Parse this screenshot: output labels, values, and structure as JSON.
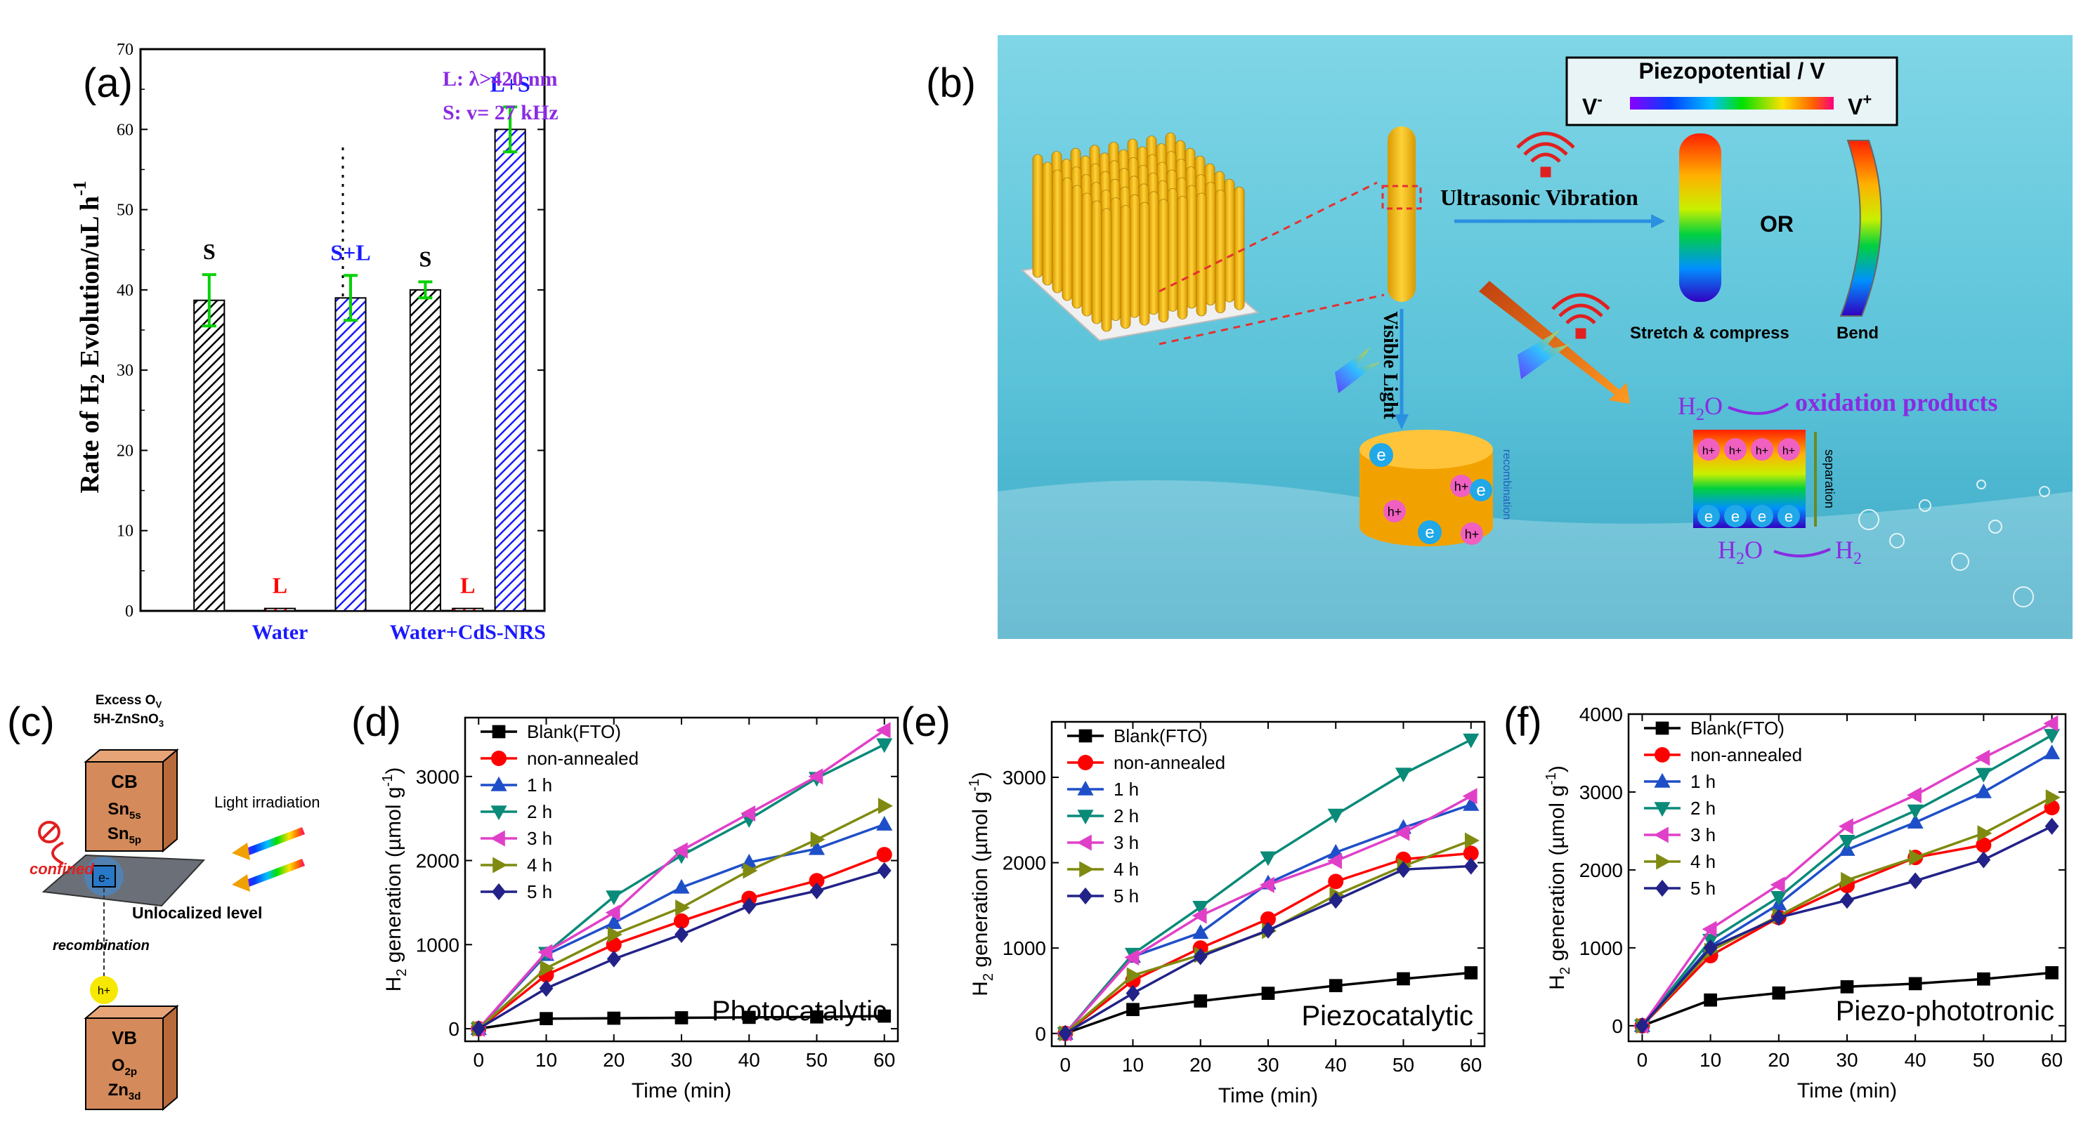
{
  "panels": {
    "a": {
      "letter": "(a)"
    },
    "b": {
      "letter": "(b)"
    },
    "c": {
      "letter": "(c)"
    },
    "d": {
      "letter": "(d)"
    },
    "e": {
      "letter": "(e)"
    },
    "f": {
      "letter": "(f)"
    }
  },
  "chart_data": [
    {
      "id": "a",
      "type": "bar",
      "ylabel": "Rate of H2 Evolution/uL h-1",
      "ylim": [
        0,
        70
      ],
      "yticks": [
        0,
        10,
        20,
        30,
        40,
        50,
        60,
        70
      ],
      "annotations": [
        "L:  λ>420 nm",
        "S:  v= 27 kHz"
      ],
      "groups": [
        {
          "name": "Water",
          "bars": [
            {
              "label": "S",
              "value": 38.7,
              "error": 3.2,
              "style": "black-hatch"
            },
            {
              "label": "L",
              "value": 0.3,
              "error": 0,
              "style": "red-hatch"
            },
            {
              "label": "S+L",
              "value": 39.0,
              "error": 2.8,
              "style": "blue-hatch"
            }
          ]
        },
        {
          "name": "Water+CdS-NRS",
          "bars": [
            {
              "label": "S",
              "value": 40.0,
              "error": 1.0,
              "style": "black-hatch"
            },
            {
              "label": "L",
              "value": 0.3,
              "error": 0,
              "style": "red-hatch"
            },
            {
              "label": "L+S",
              "value": 60.0,
              "error": 2.8,
              "style": "blue-hatch"
            }
          ]
        }
      ]
    },
    {
      "id": "d",
      "type": "line",
      "xlabel": "Time (min)",
      "ylabel": "H2 generation (µmol g-1)",
      "annotation": "Photocatalytic",
      "xlim": [
        -2,
        62
      ],
      "ylim": [
        -150,
        3700
      ],
      "xticks": [
        0,
        10,
        20,
        30,
        40,
        50,
        60
      ],
      "yticks": [
        0,
        1000,
        2000,
        3000
      ],
      "x": [
        0,
        10,
        20,
        30,
        40,
        50,
        60
      ],
      "series": [
        {
          "name": "Blank(FTO)",
          "color": "#000000",
          "marker": "square",
          "values": [
            0,
            120,
            125,
            130,
            135,
            140,
            150
          ]
        },
        {
          "name": "non-annealed",
          "color": "#ff0000",
          "marker": "circle",
          "values": [
            0,
            640,
            1000,
            1280,
            1550,
            1760,
            2070
          ]
        },
        {
          "name": "1 h",
          "color": "#1f4fc8",
          "marker": "triangle-up",
          "values": [
            0,
            880,
            1260,
            1680,
            1980,
            2140,
            2430
          ]
        },
        {
          "name": "2 h",
          "color": "#0a8a78",
          "marker": "triangle-down",
          "values": [
            0,
            900,
            1570,
            2060,
            2490,
            2980,
            3380
          ]
        },
        {
          "name": "3 h",
          "color": "#e040c8",
          "marker": "triangle-left",
          "values": [
            0,
            910,
            1380,
            2120,
            2560,
            3000,
            3550
          ]
        },
        {
          "name": "4 h",
          "color": "#7f8a10",
          "marker": "triangle-right",
          "values": [
            0,
            720,
            1120,
            1440,
            1880,
            2250,
            2650
          ]
        },
        {
          "name": "5 h",
          "color": "#222288",
          "marker": "diamond",
          "values": [
            0,
            480,
            830,
            1120,
            1460,
            1640,
            1880
          ]
        }
      ]
    },
    {
      "id": "e",
      "type": "line",
      "xlabel": "Time (min)",
      "ylabel": "H2 generation (µmol g-1)",
      "annotation": "Piezocatalytic",
      "xlim": [
        -2,
        62
      ],
      "ylim": [
        -150,
        3650
      ],
      "xticks": [
        0,
        10,
        20,
        30,
        40,
        50,
        60
      ],
      "yticks": [
        0,
        1000,
        2000,
        3000
      ],
      "x": [
        0,
        10,
        20,
        30,
        40,
        50,
        60
      ],
      "series": [
        {
          "name": "Blank(FTO)",
          "color": "#000000",
          "marker": "square",
          "values": [
            0,
            280,
            380,
            470,
            560,
            640,
            710
          ]
        },
        {
          "name": "non-annealed",
          "color": "#ff0000",
          "marker": "circle",
          "values": [
            0,
            620,
            1000,
            1340,
            1780,
            2040,
            2110
          ]
        },
        {
          "name": "1 h",
          "color": "#1f4fc8",
          "marker": "triangle-up",
          "values": [
            0,
            900,
            1180,
            1760,
            2120,
            2410,
            2680
          ]
        },
        {
          "name": "2 h",
          "color": "#0a8a78",
          "marker": "triangle-down",
          "values": [
            0,
            930,
            1480,
            2060,
            2560,
            3040,
            3440
          ]
        },
        {
          "name": "3 h",
          "color": "#e040c8",
          "marker": "triangle-left",
          "values": [
            0,
            890,
            1380,
            1740,
            2020,
            2350,
            2780
          ]
        },
        {
          "name": "4 h",
          "color": "#7f8a10",
          "marker": "triangle-right",
          "values": [
            0,
            680,
            920,
            1200,
            1620,
            1960,
            2260
          ]
        },
        {
          "name": "5 h",
          "color": "#222288",
          "marker": "diamond",
          "values": [
            0,
            470,
            900,
            1210,
            1560,
            1920,
            1960
          ]
        }
      ]
    },
    {
      "id": "f",
      "type": "line",
      "xlabel": "Time (min)",
      "ylabel": "H2 generation (µmol g-1)",
      "annotation": "Piezo-phototronic",
      "xlim": [
        -2,
        62
      ],
      "ylim": [
        -200,
        4000
      ],
      "xticks": [
        0,
        10,
        20,
        30,
        40,
        50,
        60
      ],
      "yticks": [
        0,
        1000,
        2000,
        3000,
        4000
      ],
      "x": [
        0,
        10,
        20,
        30,
        40,
        50,
        60
      ],
      "series": [
        {
          "name": "Blank(FTO)",
          "color": "#000000",
          "marker": "square",
          "values": [
            0,
            330,
            420,
            500,
            540,
            600,
            680
          ]
        },
        {
          "name": "non-annealed",
          "color": "#ff0000",
          "marker": "circle",
          "values": [
            0,
            900,
            1390,
            1800,
            2160,
            2320,
            2800
          ]
        },
        {
          "name": "1 h",
          "color": "#1f4fc8",
          "marker": "triangle-up",
          "values": [
            0,
            1020,
            1560,
            2260,
            2610,
            3000,
            3500
          ]
        },
        {
          "name": "2 h",
          "color": "#0a8a78",
          "marker": "triangle-down",
          "values": [
            0,
            1100,
            1650,
            2370,
            2760,
            3230,
            3730
          ]
        },
        {
          "name": "3 h",
          "color": "#e040c8",
          "marker": "triangle-left",
          "values": [
            0,
            1240,
            1810,
            2560,
            2960,
            3440,
            3880
          ]
        },
        {
          "name": "4 h",
          "color": "#7f8a10",
          "marker": "triangle-right",
          "values": [
            0,
            960,
            1410,
            1870,
            2160,
            2470,
            2930
          ]
        },
        {
          "name": "5 h",
          "color": "#222288",
          "marker": "diamond",
          "values": [
            0,
            1000,
            1390,
            1610,
            1860,
            2130,
            2560
          ]
        }
      ]
    }
  ],
  "schematic_b": {
    "colorbar_title": "Piezopotential / V",
    "v_minus": "V",
    "v_plus": "V",
    "minus_sign": "-",
    "plus_sign": "+",
    "ultrasonic": "Ultrasonic Vibration",
    "or_text": "OR",
    "stretch": "Stretch & compress",
    "bend": "Bend",
    "visible_light": "Visible Light",
    "recombination": "recombination",
    "separation": "separation",
    "h2o_top": "H",
    "h2o_top_sub": "2",
    "h2o_top_tail": "O",
    "oxidation": "oxidation products",
    "h2o_bottom": "H",
    "h2o_bottom_sub": "2",
    "h2o_bottom_tail": "O",
    "h2": "H",
    "h2_sub": "2",
    "e_label": "e",
    "h_label": "h+"
  },
  "schematic_c": {
    "title_line1": "Excess O",
    "title_sub": "V",
    "title_line2": "5H-ZnSnO",
    "title_sub2": "3",
    "cb": "CB",
    "sn5s": "Sn",
    "sn5s_sub": "5s",
    "sn5p": "Sn",
    "sn5p_sub": "5p",
    "vb": "VB",
    "o2p": "O",
    "o2p_sub": "2p",
    "zn3d": "Zn",
    "zn3d_sub": "3d",
    "light": "Light irradiation",
    "confined": "confined",
    "electron": "e-",
    "unlocalized": "Unlocalized level",
    "recombination": "recombination",
    "hole": "h+"
  },
  "colors": {
    "axis": "#000000",
    "hatch_black": "#000000",
    "hatch_red": "#ff0000",
    "hatch_blue": "#1a1aff",
    "errorbar": "#00d100",
    "annot_purple": "#8a2be2"
  }
}
